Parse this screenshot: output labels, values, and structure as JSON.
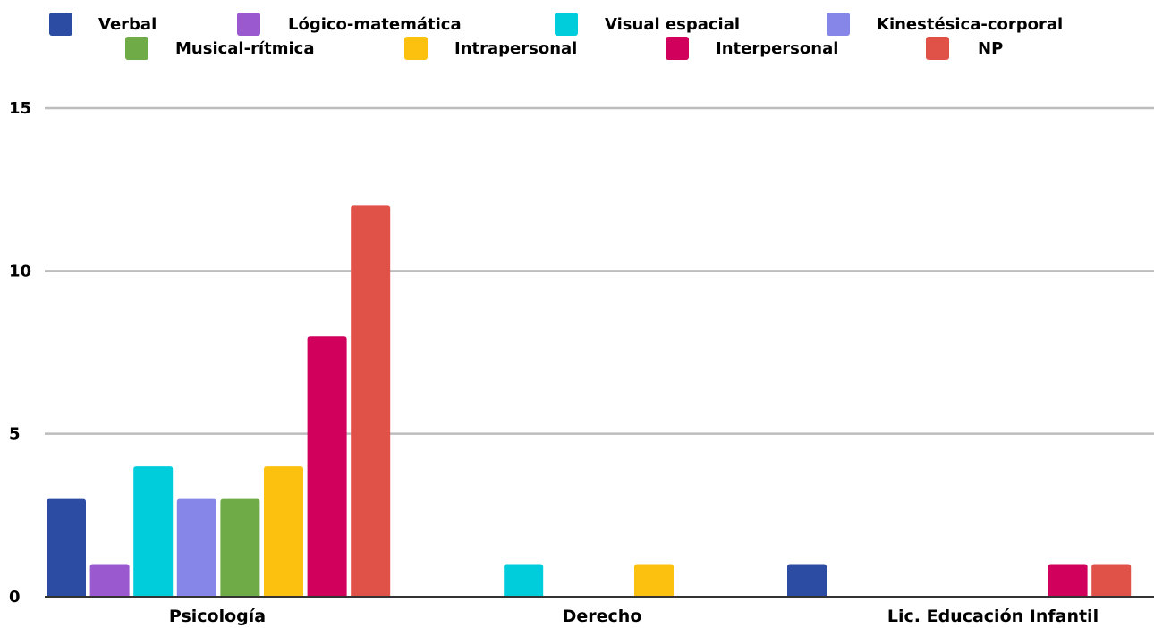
{
  "chart_data": {
    "type": "bar",
    "title": "",
    "xlabel": "",
    "ylabel": "",
    "ylim": [
      0,
      15
    ],
    "yticks": [
      "0",
      "5",
      "10",
      "15"
    ],
    "grid": true,
    "legend_position": "top",
    "categories": [
      "Psicología",
      "Derecho",
      "Lic. Educación Infantil"
    ],
    "series": [
      {
        "name": "Verbal",
        "color": "#2c4ca3",
        "values": [
          3,
          0,
          1
        ]
      },
      {
        "name": "Lógico-matemática",
        "color": "#9b59d0",
        "values": [
          1,
          0,
          0
        ]
      },
      {
        "name": "Visual espacial",
        "color": "#00cddc",
        "values": [
          4,
          1,
          0
        ]
      },
      {
        "name": "Kinestésica-corporal",
        "color": "#8686e8",
        "values": [
          3,
          0,
          0
        ]
      },
      {
        "name": "Musical-rítmica",
        "color": "#6fac47",
        "values": [
          3,
          0,
          0
        ]
      },
      {
        "name": "Intrapersonal",
        "color": "#fcc10f",
        "values": [
          4,
          1,
          0
        ]
      },
      {
        "name": "Interpersonal",
        "color": "#d0005c",
        "values": [
          8,
          0,
          1
        ]
      },
      {
        "name": "NP",
        "color": "#e05248",
        "values": [
          12,
          0,
          1
        ]
      }
    ]
  }
}
